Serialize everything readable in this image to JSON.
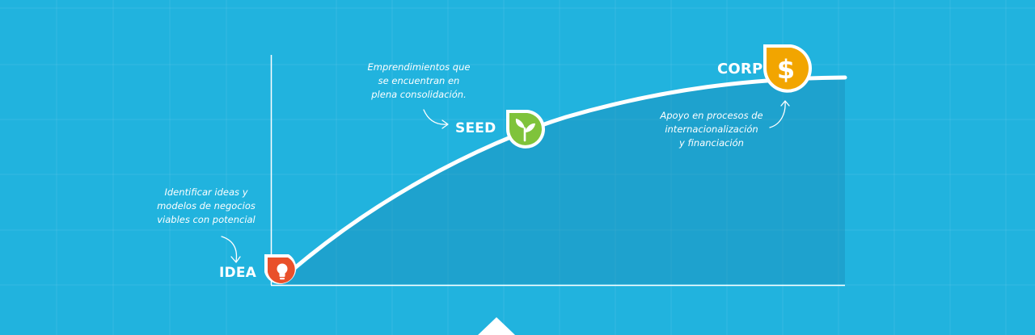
{
  "colors": {
    "background": "#21b3de",
    "area": "#1d9fc8",
    "curve": "#ffffff",
    "idea": "#e9502a",
    "seed": "#7fc33b",
    "corp": "#f2a500"
  },
  "stages": [
    {
      "id": "idea",
      "label": "IDEA",
      "icon": "lightbulb-icon",
      "description": [
        "Identificar ideas y",
        "modelos de negocios",
        "viables con potencial"
      ]
    },
    {
      "id": "seed",
      "label": "SEED",
      "icon": "sprout-icon",
      "description": [
        "Emprendimientos que",
        "se encuentran en",
        "plena consolidación."
      ]
    },
    {
      "id": "corp",
      "label": "CORP",
      "icon": "dollar-icon",
      "description": [
        "Apoyo en  procesos de",
        "internacionalización",
        "y financiación"
      ]
    }
  ]
}
